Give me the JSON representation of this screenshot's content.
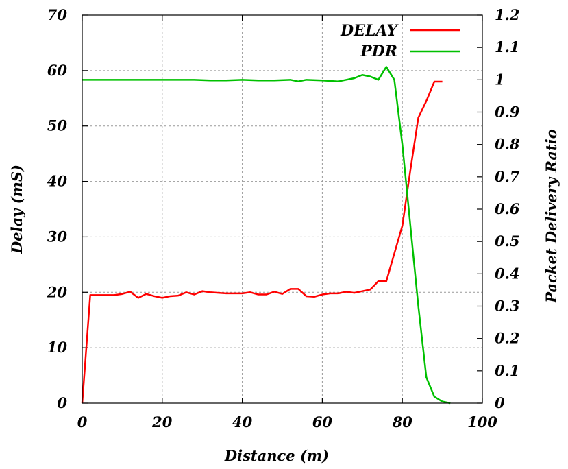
{
  "chart_data": {
    "type": "line",
    "xlabel": "Distance (m)",
    "ylabel": "Delay (mS)",
    "y2label": "Packet Delivery Ratio",
    "xlim": [
      0,
      100
    ],
    "ylim": [
      0,
      70
    ],
    "y2lim": [
      0,
      1.2
    ],
    "xticks": [
      "0",
      "20",
      "40",
      "60",
      "80",
      "100"
    ],
    "yticks": [
      "0",
      "10",
      "20",
      "30",
      "40",
      "50",
      "60",
      "70"
    ],
    "y2ticks": [
      "0",
      "0.1",
      "0.2",
      "0.3",
      "0.4",
      "0.5",
      "0.6",
      "0.7",
      "0.8",
      "0.9",
      "1",
      "1.1",
      "1.2"
    ],
    "grid": true,
    "legend_position": "top-right",
    "series": [
      {
        "name": "DELAY",
        "axis": "left",
        "color": "#ff0000",
        "x": [
          0,
          2,
          4,
          6,
          8,
          10,
          12,
          14,
          16,
          18,
          20,
          22,
          24,
          26,
          28,
          30,
          32,
          34,
          36,
          38,
          40,
          42,
          44,
          46,
          48,
          50,
          52,
          54,
          56,
          58,
          60,
          62,
          64,
          66,
          68,
          70,
          72,
          74,
          76,
          78,
          80,
          82,
          84,
          86,
          88,
          90
        ],
        "y": [
          0,
          19.5,
          19.5,
          19.5,
          19.5,
          19.7,
          20.1,
          19.0,
          19.7,
          19.3,
          19.0,
          19.3,
          19.4,
          20.0,
          19.6,
          20.2,
          20.0,
          19.9,
          19.8,
          19.8,
          19.8,
          20.0,
          19.6,
          19.6,
          20.1,
          19.7,
          20.6,
          20.6,
          19.3,
          19.2,
          19.6,
          19.8,
          19.8,
          20.1,
          19.9,
          20.2,
          20.5,
          22.0,
          22.0,
          27.0,
          32.0,
          42.0,
          51.5,
          54.5,
          58.0,
          58.0
        ]
      },
      {
        "name": "PDR",
        "axis": "right",
        "color": "#00c000",
        "x": [
          0,
          4,
          8,
          12,
          16,
          20,
          24,
          28,
          32,
          36,
          40,
          44,
          48,
          52,
          54,
          56,
          60,
          64,
          66,
          68,
          70,
          72,
          74,
          76,
          78,
          80,
          82,
          84,
          86,
          88,
          90,
          92
        ],
        "y": [
          1.0,
          1.0,
          1.0,
          1.0,
          1.0,
          1.0,
          1.0,
          1.0,
          0.998,
          0.998,
          1.0,
          0.998,
          0.998,
          1.0,
          0.995,
          1.0,
          0.998,
          0.995,
          1.0,
          1.005,
          1.015,
          1.01,
          1.0,
          1.04,
          1.0,
          0.8,
          0.55,
          0.3,
          0.08,
          0.02,
          0.005,
          0.0
        ]
      }
    ]
  }
}
